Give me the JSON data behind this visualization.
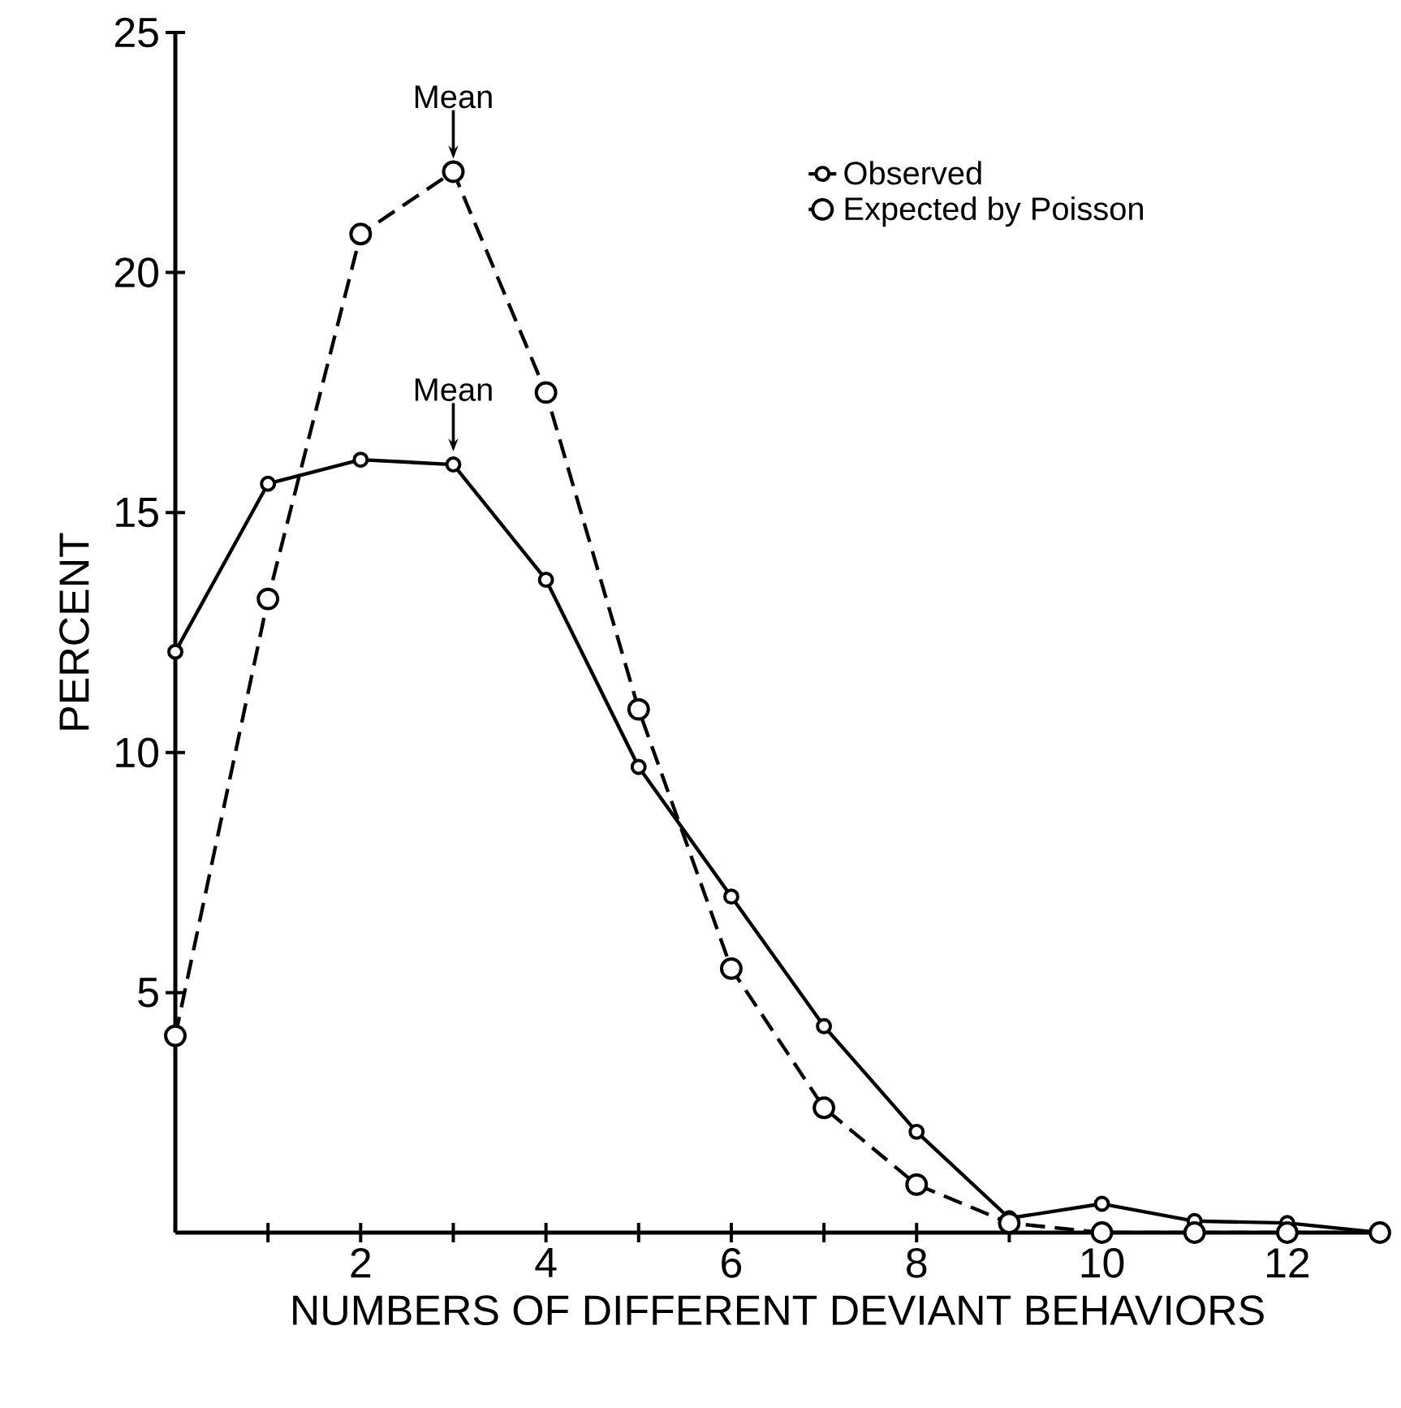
{
  "chart_data": {
    "type": "line",
    "xlabel": "NUMBERS OF DIFFERENT DEVIANT BEHAVIORS",
    "ylabel": "PERCENT",
    "x": [
      0,
      1,
      2,
      3,
      4,
      5,
      6,
      7,
      8,
      9,
      10,
      11,
      12,
      13
    ],
    "series": [
      {
        "name": "Observed",
        "color": "#000000",
        "line_style": "solid",
        "values": [
          12.1,
          15.6,
          16.1,
          16.0,
          13.6,
          9.7,
          7.0,
          4.3,
          2.1,
          0.3,
          0.6,
          0.24,
          0.2,
          0
        ]
      },
      {
        "name": "Expected by Poisson",
        "color": "#000000",
        "line_style": "dashed",
        "values": [
          4.1,
          13.2,
          20.8,
          22.1,
          17.5,
          10.9,
          5.5,
          2.6,
          1.0,
          0.2,
          0,
          0,
          0,
          0
        ]
      }
    ],
    "xlim": [
      0,
      13
    ],
    "ylim": [
      0,
      25
    ],
    "xticks": [
      {
        "value": 1,
        "label": null
      },
      2,
      {
        "value": 3,
        "label": null
      },
      4,
      {
        "value": 5,
        "label": null
      },
      6,
      {
        "value": 7,
        "label": null
      },
      8,
      {
        "value": 9,
        "label": null
      },
      10,
      {
        "value": 11,
        "label": null
      },
      12,
      {
        "value": 13,
        "label": null
      }
    ],
    "yticks": [
      5,
      10,
      15,
      20,
      25
    ],
    "annotations": [
      {
        "text": "Mean",
        "x": 3,
        "y": 22.1
      },
      {
        "text": "Mean",
        "x": 3,
        "y": 16.0
      }
    ],
    "marker": "circle",
    "legend": "top right",
    "grid": false
  }
}
